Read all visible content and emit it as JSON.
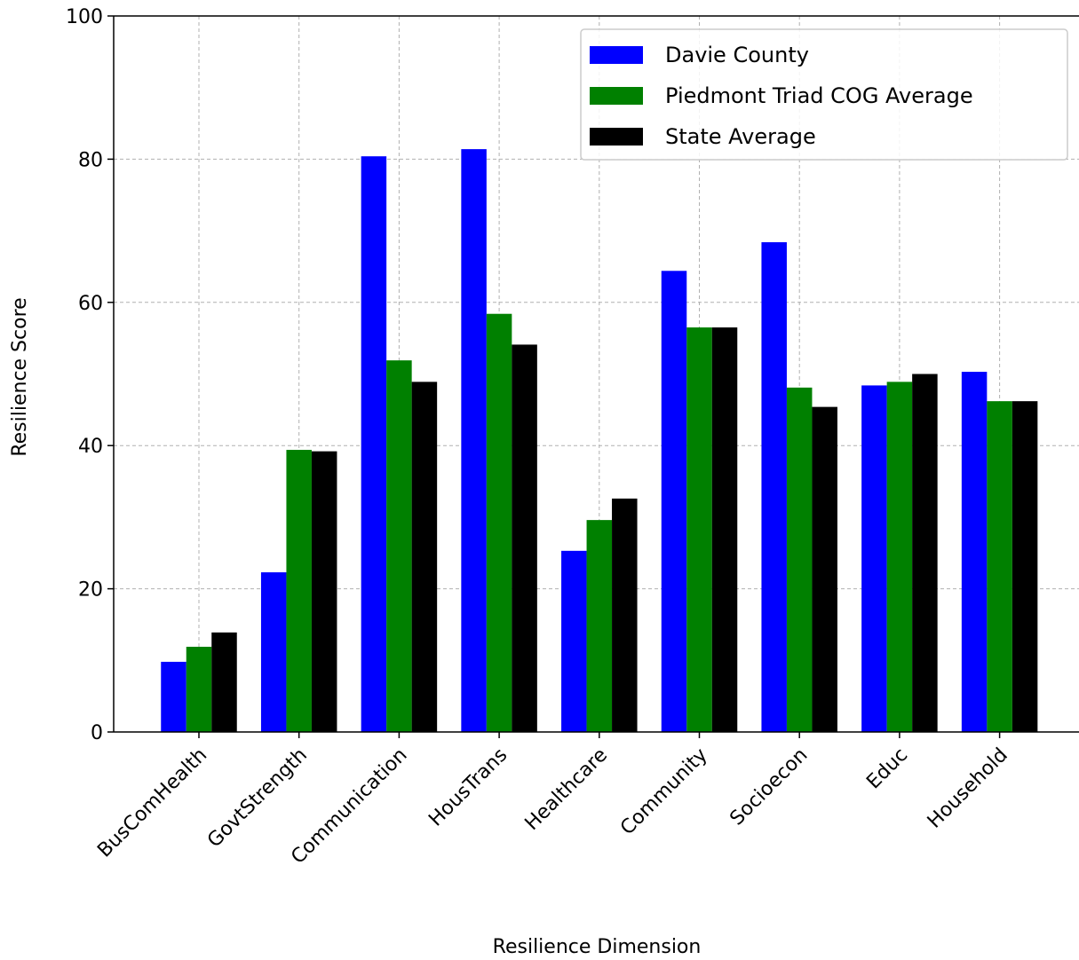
{
  "chart_data": {
    "type": "bar",
    "categories": [
      "BusComHealth",
      "GovtStrength",
      "Communication",
      "HousTrans",
      "Healthcare",
      "Community",
      "Socioecon",
      "Educ",
      "Household"
    ],
    "series": [
      {
        "name": "Davie County",
        "color": "#0000ff",
        "values": [
          9.8,
          22.3,
          80.4,
          81.4,
          25.3,
          64.4,
          68.4,
          48.4,
          50.3
        ]
      },
      {
        "name": "Piedmont Triad COG Average",
        "color": "#008000",
        "values": [
          11.9,
          39.4,
          51.9,
          58.4,
          29.6,
          56.5,
          48.1,
          48.9,
          46.2
        ]
      },
      {
        "name": "State Average",
        "color": "#000000",
        "values": [
          13.9,
          39.2,
          48.9,
          54.1,
          32.6,
          56.5,
          45.4,
          50.0,
          46.2
        ]
      }
    ],
    "xlabel": "Resilience Dimension",
    "ylabel": "Resilience Score",
    "ylim": [
      0,
      100
    ],
    "yticks": [
      "0",
      "20",
      "40",
      "60",
      "80",
      "100"
    ],
    "grid": true,
    "legend_position": "top-right"
  }
}
